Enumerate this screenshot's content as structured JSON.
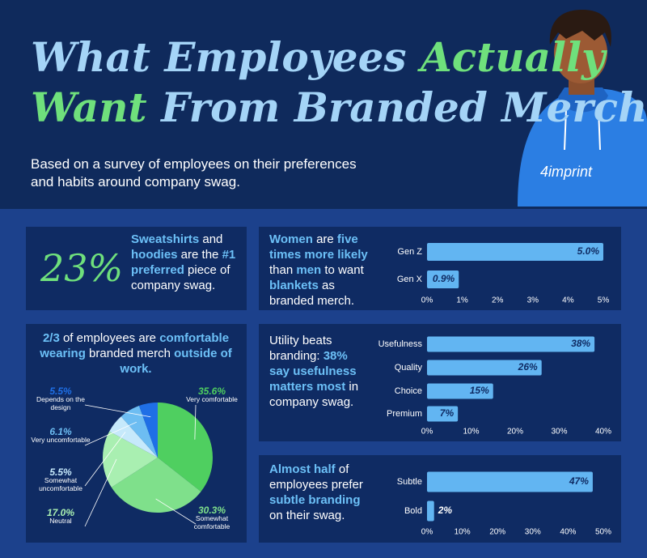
{
  "header": {
    "title_lines": [
      [
        {
          "text": "What Employees ",
          "color": "#a4d4f7"
        },
        {
          "text": "Actually",
          "color": "#6fe07c"
        }
      ],
      [
        {
          "text": "Want",
          "color": "#6fe07c"
        },
        {
          "text": " From Branded Merch",
          "color": "#a4d4f7"
        }
      ]
    ],
    "subtitle": "Based on a survey of employees on their preferences and habits around company swag.",
    "logo": "4imprint"
  },
  "panels": [
    {
      "stat": "23%",
      "text": [
        {
          "text": "Sweatshirts",
          "color": "#6cc0f7"
        },
        {
          "text": " and "
        },
        {
          "text": "hoodies",
          "color": "#6cc0f7"
        },
        {
          "text": " are the "
        },
        {
          "text": "#1 preferred",
          "color": "#6cc0f7"
        },
        {
          "text": " piece of company swag."
        }
      ]
    },
    {
      "text": [
        {
          "text": "Women",
          "color": "#6cc0f7"
        },
        {
          "text": " are "
        },
        {
          "text": "five times more likely",
          "color": "#6cc0f7"
        },
        {
          "text": " than "
        },
        {
          "text": "men",
          "color": "#6cc0f7"
        },
        {
          "text": " to want "
        },
        {
          "text": "blankets",
          "color": "#6cc0f7"
        },
        {
          "text": " as branded merch."
        }
      ]
    },
    {
      "text": [
        {
          "text": "2/3",
          "color": "#6cc0f7"
        },
        {
          "text": " of employees are "
        },
        {
          "text": "comfortable wearing",
          "color": "#6cc0f7"
        },
        {
          "text": " branded merch "
        },
        {
          "text": "outside of work.",
          "color": "#6cc0f7"
        }
      ]
    },
    {
      "text": [
        {
          "text": "Utility beats branding: "
        },
        {
          "text": "38% say usefulness matters most",
          "color": "#6cc0f7"
        },
        {
          "text": " in company swag."
        }
      ]
    },
    {
      "text": [
        {
          "text": "Almost half",
          "color": "#6cc0f7"
        },
        {
          "text": " of employees prefer "
        },
        {
          "text": "subtle branding",
          "color": "#6cc0f7"
        },
        {
          "text": " on their swag."
        }
      ]
    }
  ],
  "chart_data": [
    {
      "type": "bar",
      "orientation": "horizontal",
      "categories": [
        "Gen Z",
        "Gen X"
      ],
      "values": [
        5.0,
        0.9
      ],
      "value_labels": [
        "5.0%",
        "0.9%"
      ],
      "color": "#62b5f2",
      "xlim": [
        0,
        5
      ],
      "xticks": [
        {
          "value": 0,
          "label": "0%"
        },
        {
          "value": 1,
          "label": "1%"
        },
        {
          "value": 2,
          "label": "2%"
        },
        {
          "value": 3,
          "label": "3%"
        },
        {
          "value": 4,
          "label": "4%"
        },
        {
          "value": 5,
          "label": "5%"
        }
      ]
    },
    {
      "type": "pie",
      "categories": [
        "Very comfortable",
        "Somewhat comfortable",
        "Neutral",
        "Somewhat uncomfortable",
        "Very uncomfortable",
        "Depends on the design"
      ],
      "values": [
        35.6,
        30.3,
        17.0,
        5.5,
        6.1,
        5.5
      ],
      "value_labels": [
        "35.6%",
        "30.3%",
        "17.0%",
        "5.5%",
        "6.1%",
        "5.5%"
      ],
      "colors": [
        "#4fcf60",
        "#7fe08b",
        "#a9efb1",
        "#c6e9fb",
        "#6dbdf2",
        "#1f6fe6"
      ]
    },
    {
      "type": "bar",
      "orientation": "horizontal",
      "categories": [
        "Usefulness",
        "Quality",
        "Choice",
        "Premium"
      ],
      "values": [
        38,
        26,
        15,
        7
      ],
      "value_labels": [
        "38%",
        "26%",
        "15%",
        "7%"
      ],
      "color": "#62b5f2",
      "xlim": [
        0,
        40
      ],
      "xticks": [
        {
          "value": 0,
          "label": "0%"
        },
        {
          "value": 10,
          "label": "10%"
        },
        {
          "value": 20,
          "label": "20%"
        },
        {
          "value": 30,
          "label": "30%"
        },
        {
          "value": 40,
          "label": "40%"
        }
      ]
    },
    {
      "type": "bar",
      "orientation": "horizontal",
      "categories": [
        "Subtle",
        "Bold"
      ],
      "values": [
        47,
        2
      ],
      "value_labels": [
        "47%",
        "2%"
      ],
      "color": "#62b5f2",
      "xlim": [
        0,
        50
      ],
      "xticks": [
        {
          "value": 0,
          "label": "0%"
        },
        {
          "value": 10,
          "label": "10%"
        },
        {
          "value": 20,
          "label": "20%"
        },
        {
          "value": 30,
          "label": "30%"
        },
        {
          "value": 40,
          "label": "40%"
        },
        {
          "value": 50,
          "label": "50%"
        }
      ]
    }
  ]
}
